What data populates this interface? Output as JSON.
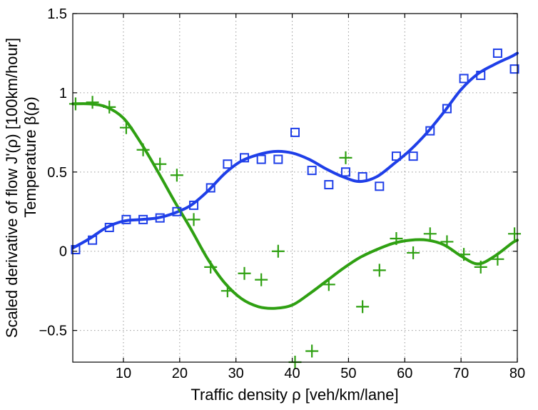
{
  "chart_data": {
    "type": "scatter",
    "title": "",
    "xlabel": "Traffic density ρ [veh/km/lane]",
    "ylabel_line1": "Scaled derivative of flow J'(ρ) [100km/hour]",
    "ylabel_line2": "Temperature β(ρ)",
    "xlim": [
      1,
      80
    ],
    "ylim": [
      -0.7,
      1.5
    ],
    "xticks": [
      10,
      20,
      30,
      40,
      50,
      60,
      70,
      80
    ],
    "yticks": [
      -0.5,
      0,
      0.5,
      1,
      1.5
    ],
    "ytick_labels": [
      "−0.5",
      "0",
      "0.5",
      "1",
      "1.5"
    ],
    "grid": true,
    "series": [
      {
        "name": "blue-squares",
        "marker": "square",
        "color": "#1f3fe8",
        "x": [
          1.5,
          4.5,
          7.5,
          10.5,
          13.5,
          16.5,
          19.5,
          22.5,
          25.5,
          28.5,
          31.5,
          34.5,
          37.5,
          40.5,
          43.5,
          46.5,
          49.5,
          52.5,
          55.5,
          58.5,
          61.5,
          64.5,
          67.5,
          70.5,
          73.5,
          76.5,
          79.5
        ],
        "y": [
          0.01,
          0.07,
          0.15,
          0.2,
          0.2,
          0.21,
          0.25,
          0.29,
          0.4,
          0.55,
          0.59,
          0.58,
          0.58,
          0.75,
          0.51,
          0.42,
          0.5,
          0.47,
          0.41,
          0.6,
          0.6,
          0.76,
          0.9,
          1.09,
          1.11,
          1.25,
          1.15
        ]
      },
      {
        "name": "blue-fit",
        "marker": "line",
        "color": "#1f3fe8",
        "x": [
          1,
          4,
          7,
          10,
          13,
          16,
          19,
          22,
          25,
          28,
          31,
          34,
          37,
          40,
          43,
          46,
          49,
          52,
          55,
          58,
          61,
          64,
          67,
          70,
          73,
          76,
          79,
          80
        ],
        "y": [
          0.02,
          0.08,
          0.15,
          0.19,
          0.2,
          0.21,
          0.24,
          0.29,
          0.38,
          0.49,
          0.57,
          0.61,
          0.63,
          0.62,
          0.58,
          0.52,
          0.47,
          0.44,
          0.47,
          0.55,
          0.64,
          0.75,
          0.88,
          1.02,
          1.12,
          1.18,
          1.23,
          1.25
        ]
      },
      {
        "name": "green-crosses",
        "marker": "cross",
        "color": "#2fa012",
        "x": [
          1.5,
          4.5,
          7.5,
          10.5,
          13.5,
          16.5,
          19.5,
          22.5,
          25.5,
          28.5,
          31.5,
          34.5,
          37.5,
          40.5,
          43.5,
          46.5,
          49.5,
          52.5,
          55.5,
          58.5,
          61.5,
          64.5,
          67.5,
          70.5,
          73.5,
          76.5,
          79.5
        ],
        "y": [
          0.93,
          0.94,
          0.91,
          0.78,
          0.64,
          0.55,
          0.48,
          0.2,
          -0.1,
          -0.25,
          -0.14,
          -0.18,
          0.0,
          -0.7,
          -0.63,
          -0.21,
          0.59,
          -0.35,
          -0.12,
          0.08,
          -0.01,
          0.11,
          0.06,
          -0.02,
          -0.1,
          -0.05,
          0.11
        ]
      },
      {
        "name": "green-fit",
        "marker": "line",
        "color": "#2fa012",
        "x": [
          1,
          4,
          7,
          10,
          13,
          16,
          19,
          22,
          25,
          28,
          31,
          34,
          37,
          40,
          43,
          46,
          49,
          52,
          55,
          58,
          61,
          64,
          67,
          70,
          73,
          76,
          79,
          80
        ],
        "y": [
          0.93,
          0.93,
          0.91,
          0.84,
          0.69,
          0.51,
          0.32,
          0.14,
          -0.05,
          -0.2,
          -0.3,
          -0.35,
          -0.36,
          -0.34,
          -0.27,
          -0.19,
          -0.11,
          -0.04,
          0.01,
          0.05,
          0.07,
          0.07,
          0.04,
          -0.03,
          -0.08,
          -0.03,
          0.05,
          0.07
        ]
      }
    ]
  }
}
